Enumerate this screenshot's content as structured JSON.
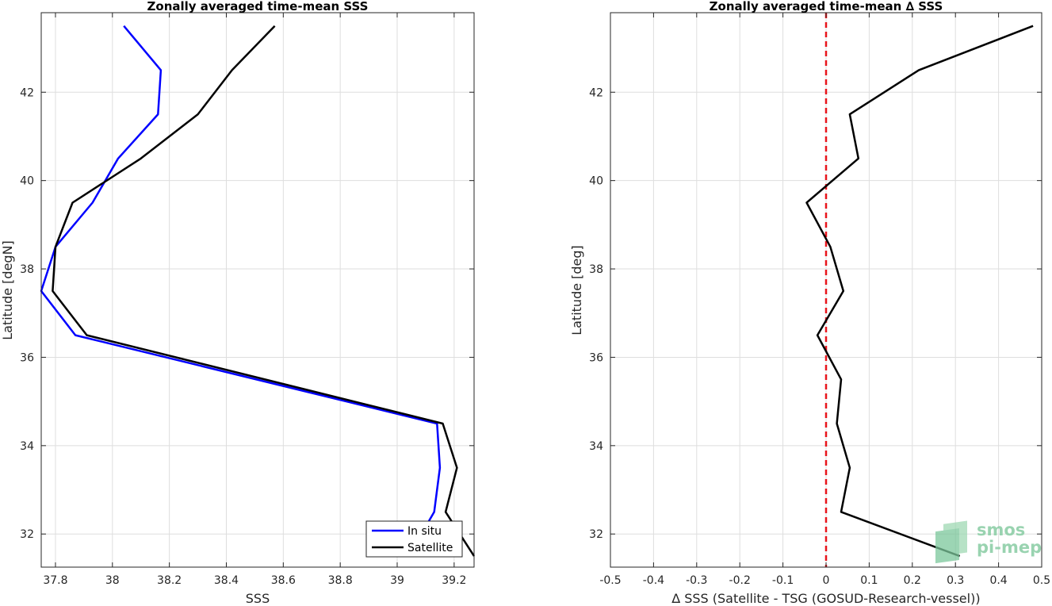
{
  "chart_data": [
    {
      "type": "line",
      "title": "Zonally averaged time-mean SSS",
      "xlabel": "SSS",
      "ylabel": "Latitude [degN]",
      "xlim": [
        37.75,
        39.27
      ],
      "ylim": [
        31.25,
        43.8
      ],
      "xticks": [
        37.8,
        38.0,
        38.2,
        38.4,
        38.6,
        38.8,
        39.0,
        39.2
      ],
      "xtick_labels": [
        "37.8",
        "38",
        "38.2",
        "38.4",
        "38.6",
        "38.8",
        "39",
        "39.2"
      ],
      "yticks": [
        32,
        34,
        36,
        38,
        40,
        42
      ],
      "ytick_labels": [
        "32",
        "34",
        "36",
        "38",
        "40",
        "42"
      ],
      "grid": true,
      "legend_position": "bottom-right",
      "series": [
        {
          "name": "In situ",
          "color": "#0000ff",
          "points": [
            [
              38.04,
              43.5
            ],
            [
              38.17,
              42.5
            ],
            [
              38.16,
              41.5
            ],
            [
              38.02,
              40.5
            ],
            [
              37.93,
              39.5
            ],
            [
              37.8,
              38.5
            ],
            [
              37.75,
              37.5
            ],
            [
              37.87,
              36.5
            ],
            [
              39.14,
              34.5
            ],
            [
              39.15,
              33.5
            ],
            [
              39.13,
              32.5
            ],
            [
              39.04,
              31.5
            ]
          ]
        },
        {
          "name": "Satellite",
          "color": "#000000",
          "points": [
            [
              38.57,
              43.5
            ],
            [
              38.42,
              42.5
            ],
            [
              38.3,
              41.5
            ],
            [
              38.1,
              40.5
            ],
            [
              37.86,
              39.5
            ],
            [
              37.8,
              38.5
            ],
            [
              37.79,
              37.5
            ],
            [
              37.91,
              36.5
            ],
            [
              39.16,
              34.5
            ],
            [
              39.21,
              33.5
            ],
            [
              39.17,
              32.5
            ],
            [
              39.27,
              31.5
            ]
          ]
        }
      ]
    },
    {
      "type": "line",
      "title": "Zonally averaged time-mean ∆ SSS",
      "xlabel": "∆ SSS (Satellite - TSG (GOSUD-Research-vessel))",
      "ylabel": "Latitude [deg]",
      "xlim": [
        -0.5,
        0.5
      ],
      "ylim": [
        31.25,
        43.8
      ],
      "xticks": [
        -0.5,
        -0.4,
        -0.3,
        -0.2,
        -0.1,
        0,
        0.1,
        0.2,
        0.3,
        0.4,
        0.5
      ],
      "xtick_labels": [
        "-0.5",
        "-0.4",
        "-0.3",
        "-0.2",
        "-0.1",
        "0",
        "0.1",
        "0.2",
        "0.3",
        "0.4",
        "0.5"
      ],
      "yticks": [
        32,
        34,
        36,
        38,
        40,
        42
      ],
      "ytick_labels": [
        "32",
        "34",
        "36",
        "38",
        "40",
        "42"
      ],
      "grid": true,
      "reference_line": {
        "x": 0,
        "color": "#e8141b",
        "style": "dashed"
      },
      "series": [
        {
          "color": "#000000",
          "points": [
            [
              0.48,
              43.5
            ],
            [
              0.215,
              42.5
            ],
            [
              0.055,
              41.5
            ],
            [
              0.075,
              40.5
            ],
            [
              -0.045,
              39.5
            ],
            [
              0.01,
              38.5
            ],
            [
              0.04,
              37.5
            ],
            [
              -0.02,
              36.5
            ],
            [
              0.035,
              35.5
            ],
            [
              0.025,
              34.5
            ],
            [
              0.055,
              33.5
            ],
            [
              0.035,
              32.5
            ],
            [
              0.31,
              31.5
            ]
          ]
        }
      ]
    }
  ],
  "watermark": {
    "line1": "smos",
    "line2": "pi-mep",
    "color": "#8fcfa8"
  }
}
